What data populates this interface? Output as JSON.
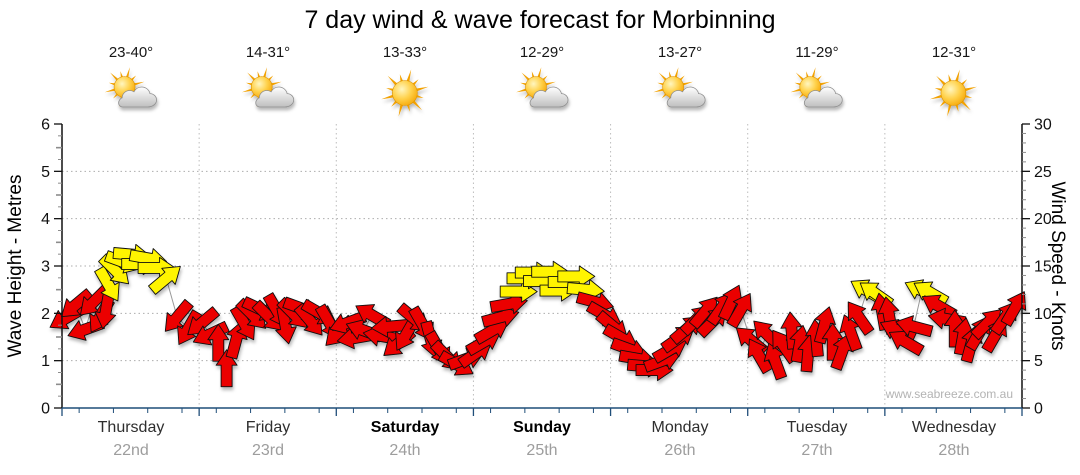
{
  "page": {
    "title": "7 day wind & wave forecast for Morbinning",
    "watermark": "www.seabreeze.com.au"
  },
  "days": [
    {
      "name": "Thursday",
      "date": "22nd",
      "temp": "23-40°",
      "icon": "sun-cloud",
      "bold": false
    },
    {
      "name": "Friday",
      "date": "23rd",
      "temp": "14-31°",
      "icon": "sun-cloud",
      "bold": false
    },
    {
      "name": "Saturday",
      "date": "24th",
      "temp": "13-33°",
      "icon": "sunny",
      "bold": true
    },
    {
      "name": "Sunday",
      "date": "25th",
      "temp": "12-29°",
      "icon": "sun-cloud",
      "bold": true
    },
    {
      "name": "Monday",
      "date": "26th",
      "temp": "13-27°",
      "icon": "sun-cloud",
      "bold": false
    },
    {
      "name": "Tuesday",
      "date": "27th",
      "temp": "11-29°",
      "icon": "sun-cloud",
      "bold": false
    },
    {
      "name": "Wednesday",
      "date": "28th",
      "temp": "12-31°",
      "icon": "sunny",
      "bold": false
    }
  ],
  "chart_data": {
    "type": "scatter",
    "title": "7 day wind & wave forecast for Morbinning",
    "left_axis": {
      "label": "Wave Height - Metres",
      "min": 0,
      "max": 6,
      "tick_step": 1,
      "minor_step": 0.25
    },
    "right_axis": {
      "label": "Wind Speed - Knots",
      "min": 0,
      "max": 30,
      "tick_step": 5,
      "minor_step": 1
    },
    "x_axis": {
      "n_days": 7,
      "day_labels": [
        "Thursday 22nd",
        "Friday 23rd",
        "Saturday 24th",
        "Sunday 25th",
        "Monday 26th",
        "Tuesday 27th",
        "Wednesday 28th"
      ]
    },
    "grid": true,
    "legend": "none",
    "wave_height_series": [],
    "series": [
      {
        "name": "Wind speed & direction",
        "marker": "wind-arrow",
        "arrow_format": [
          "t (day+fraction, 0=Thu 00:00)",
          "knots",
          "rot_deg_cw_from_east",
          "color r=light y=moderate"
        ],
        "arrows": [
          [
            0.03,
            9.5,
            150,
            "r"
          ],
          [
            0.1,
            10.9,
            140,
            "r"
          ],
          [
            0.17,
            8.3,
            160,
            "r"
          ],
          [
            0.23,
            11.2,
            135,
            "r"
          ],
          [
            0.28,
            9.7,
            120,
            "r"
          ],
          [
            0.32,
            10.3,
            100,
            "r"
          ],
          [
            0.34,
            13.0,
            60,
            "y"
          ],
          [
            0.39,
            14.5,
            45,
            "y"
          ],
          [
            0.45,
            15.4,
            20,
            "y"
          ],
          [
            0.51,
            16.2,
            5,
            "y"
          ],
          [
            0.57,
            15.2,
            0,
            "y"
          ],
          [
            0.63,
            15.8,
            10,
            "y"
          ],
          [
            0.69,
            14.8,
            0,
            "y"
          ],
          [
            0.76,
            13.7,
            -40,
            "y"
          ],
          [
            0.84,
            9.6,
            130,
            "r"
          ],
          [
            0.92,
            8.4,
            120,
            "r"
          ],
          [
            1.02,
            9.0,
            140,
            "r"
          ],
          [
            1.08,
            7.8,
            155,
            "r"
          ],
          [
            1.14,
            6.9,
            -90,
            "r"
          ],
          [
            1.2,
            4.2,
            -90,
            "r"
          ],
          [
            1.27,
            7.2,
            -75,
            "r"
          ],
          [
            1.33,
            8.9,
            60,
            "r"
          ],
          [
            1.39,
            9.8,
            45,
            "r"
          ],
          [
            1.45,
            10.4,
            25,
            "r"
          ],
          [
            1.51,
            9.6,
            45,
            "r"
          ],
          [
            1.57,
            10.2,
            60,
            "r"
          ],
          [
            1.63,
            8.7,
            80,
            "r"
          ],
          [
            1.69,
            9.9,
            45,
            "r"
          ],
          [
            1.75,
            10.5,
            20,
            "r"
          ],
          [
            1.81,
            9.2,
            50,
            "r"
          ],
          [
            1.88,
            10.0,
            30,
            "r"
          ],
          [
            1.95,
            9.0,
            60,
            "r"
          ],
          [
            2.02,
            8.0,
            135,
            "r"
          ],
          [
            2.08,
            9.0,
            160,
            "r"
          ],
          [
            2.14,
            7.4,
            170,
            "r"
          ],
          [
            2.2,
            8.2,
            -160,
            "r"
          ],
          [
            2.26,
            9.8,
            -150,
            "r"
          ],
          [
            2.33,
            7.6,
            -170,
            "r"
          ],
          [
            2.39,
            8.6,
            175,
            "r"
          ],
          [
            2.45,
            6.8,
            140,
            "r"
          ],
          [
            2.51,
            7.8,
            120,
            "r"
          ],
          [
            2.57,
            9.4,
            40,
            "r"
          ],
          [
            2.63,
            8.8,
            60,
            "r"
          ],
          [
            2.69,
            7.2,
            75,
            "r"
          ],
          [
            2.75,
            6.2,
            60,
            "r"
          ],
          [
            2.81,
            5.4,
            45,
            "r"
          ],
          [
            2.88,
            4.6,
            30,
            "r"
          ],
          [
            2.95,
            5.2,
            -20,
            "r"
          ],
          [
            3.02,
            5.8,
            -35,
            "r"
          ],
          [
            3.08,
            7.0,
            -30,
            "r"
          ],
          [
            3.14,
            8.2,
            -30,
            "r"
          ],
          [
            3.2,
            9.6,
            -15,
            "r"
          ],
          [
            3.26,
            11.0,
            -10,
            "r"
          ],
          [
            3.33,
            12.3,
            0,
            "y"
          ],
          [
            3.38,
            13.7,
            0,
            "y"
          ],
          [
            3.44,
            14.3,
            0,
            "y"
          ],
          [
            3.5,
            13.4,
            0,
            "y"
          ],
          [
            3.56,
            14.4,
            0,
            "y"
          ],
          [
            3.62,
            12.4,
            0,
            "y"
          ],
          [
            3.68,
            13.3,
            0,
            "y"
          ],
          [
            3.75,
            13.9,
            0,
            "y"
          ],
          [
            3.82,
            12.5,
            5,
            "y"
          ],
          [
            3.89,
            11.2,
            15,
            "r"
          ],
          [
            3.96,
            9.8,
            30,
            "r"
          ],
          [
            4.02,
            8.6,
            40,
            "r"
          ],
          [
            4.08,
            7.4,
            30,
            "r"
          ],
          [
            4.14,
            6.2,
            20,
            "r"
          ],
          [
            4.2,
            5.2,
            10,
            "r"
          ],
          [
            4.26,
            4.4,
            5,
            "r"
          ],
          [
            4.32,
            4.0,
            0,
            "r"
          ],
          [
            4.38,
            5.0,
            -20,
            "r"
          ],
          [
            4.44,
            6.2,
            -30,
            "r"
          ],
          [
            4.5,
            7.4,
            -35,
            "r"
          ],
          [
            4.56,
            8.4,
            -40,
            "r"
          ],
          [
            4.63,
            9.4,
            -45,
            "r"
          ],
          [
            4.69,
            10.2,
            -50,
            "r"
          ],
          [
            4.75,
            9.2,
            -45,
            "r"
          ],
          [
            4.81,
            10.6,
            -55,
            "r"
          ],
          [
            4.88,
            11.2,
            -65,
            "r"
          ],
          [
            4.95,
            10.4,
            -60,
            "r"
          ],
          [
            5.02,
            7.2,
            -140,
            "r"
          ],
          [
            5.08,
            5.6,
            -120,
            "r"
          ],
          [
            5.14,
            7.8,
            -135,
            "r"
          ],
          [
            5.2,
            5.0,
            -110,
            "r"
          ],
          [
            5.26,
            6.6,
            -125,
            "r"
          ],
          [
            5.32,
            8.2,
            -95,
            "r"
          ],
          [
            5.38,
            6.8,
            -80,
            "r"
          ],
          [
            5.44,
            5.8,
            -85,
            "r"
          ],
          [
            5.5,
            7.4,
            -95,
            "r"
          ],
          [
            5.56,
            8.8,
            -75,
            "r"
          ],
          [
            5.62,
            7.0,
            -90,
            "r"
          ],
          [
            5.69,
            6.0,
            -70,
            "r"
          ],
          [
            5.75,
            8.0,
            -110,
            "r"
          ],
          [
            5.81,
            9.6,
            -125,
            "r"
          ],
          [
            5.87,
            12.4,
            -150,
            "y"
          ],
          [
            5.93,
            12.1,
            -145,
            "y"
          ],
          [
            5.98,
            10.2,
            -100,
            "r"
          ],
          [
            6.03,
            9.8,
            -100,
            "r"
          ],
          [
            6.09,
            8.2,
            -155,
            "r"
          ],
          [
            6.15,
            7.0,
            -150,
            "r"
          ],
          [
            6.21,
            8.6,
            -165,
            "r"
          ],
          [
            6.27,
            12.4,
            -155,
            "y"
          ],
          [
            6.33,
            12.2,
            -150,
            "y"
          ],
          [
            6.39,
            10.8,
            -150,
            "r"
          ],
          [
            6.45,
            9.4,
            -170,
            "r"
          ],
          [
            6.51,
            8.4,
            -90,
            "r"
          ],
          [
            6.57,
            7.6,
            -80,
            "r"
          ],
          [
            6.63,
            6.8,
            -75,
            "r"
          ],
          [
            6.69,
            8.0,
            -60,
            "r"
          ],
          [
            6.75,
            9.0,
            -45,
            "r"
          ],
          [
            6.81,
            7.8,
            -60,
            "r"
          ],
          [
            6.88,
            9.6,
            -55,
            "r"
          ],
          [
            6.95,
            10.6,
            -60,
            "r"
          ]
        ]
      }
    ],
    "colors": {
      "arrow_light": "#EB0000",
      "arrow_moderate": "#FFF400",
      "arrow_outline": "#111111",
      "connector_line": "#999999",
      "grid": "#ADADAD",
      "day_divider": "#BDBDBD",
      "y_axis_line": "#111111",
      "x_axis_line": "#1F4E79",
      "tick_label": "#111111"
    }
  }
}
